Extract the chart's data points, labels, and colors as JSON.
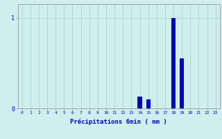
{
  "hours": [
    0,
    1,
    2,
    3,
    4,
    5,
    6,
    7,
    8,
    9,
    10,
    11,
    12,
    13,
    14,
    15,
    16,
    17,
    18,
    19,
    20,
    21,
    22,
    23
  ],
  "values": [
    0,
    0,
    0,
    0,
    0,
    0,
    0,
    0,
    0,
    0,
    0,
    0,
    0,
    0,
    0.13,
    0.1,
    0,
    0,
    1.0,
    0.55,
    0,
    0,
    0,
    0
  ],
  "bar_color": "#0000bb",
  "bg_color": "#d0eeee",
  "grid_color": "#b0d8d8",
  "axis_color": "#999999",
  "xlabel": "Précipitations 6min ( mm )",
  "xlabel_color": "#0000bb",
  "ylabel_0": "0",
  "ylabel_1": "1",
  "ylim": [
    0,
    1.15
  ],
  "xlim": [
    -0.5,
    23.5
  ],
  "tick_color": "#0000bb",
  "bar_width": 0.5,
  "figsize": [
    3.2,
    2.0
  ],
  "dpi": 100
}
